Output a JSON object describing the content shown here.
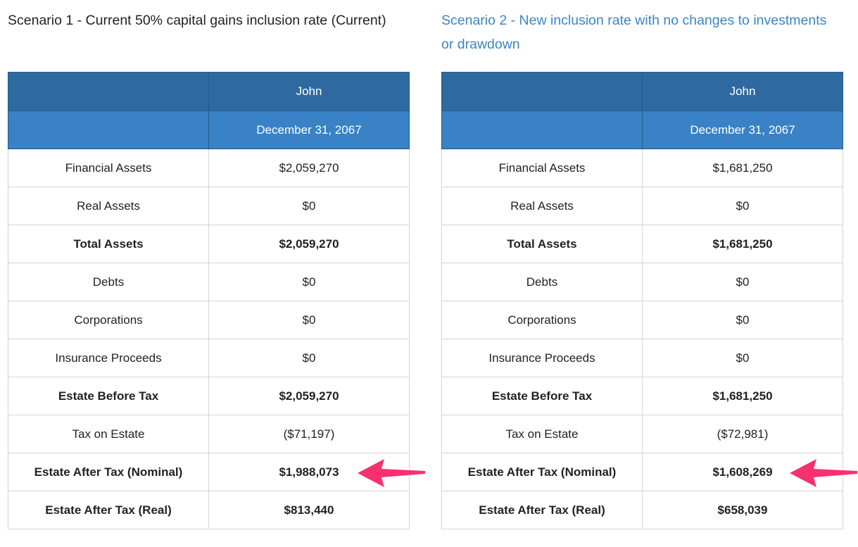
{
  "scenarios": [
    {
      "title": "Scenario 1 - Current 50% capital gains inclusion rate (Current)",
      "person": "John",
      "date": "December 31, 2067",
      "rows": [
        {
          "label": "Financial Assets",
          "value": "$2,059,270",
          "bold": false
        },
        {
          "label": "Real Assets",
          "value": "$0",
          "bold": false
        },
        {
          "label": "Total Assets",
          "value": "$2,059,270",
          "bold": true
        },
        {
          "label": "Debts",
          "value": "$0",
          "bold": false
        },
        {
          "label": "Corporations",
          "value": "$0",
          "bold": false
        },
        {
          "label": "Insurance Proceeds",
          "value": "$0",
          "bold": false
        },
        {
          "label": "Estate Before Tax",
          "value": "$2,059,270",
          "bold": true
        },
        {
          "label": "Tax on Estate",
          "value": "($71,197)",
          "bold": false
        },
        {
          "label": "Estate After Tax (Nominal)",
          "value": "$1,988,073",
          "bold": true
        },
        {
          "label": "Estate After Tax (Real)",
          "value": "$813,440",
          "bold": true
        }
      ]
    },
    {
      "title": "Scenario 2 - New inclusion rate with no changes to investments or drawdown",
      "person": "John",
      "date": "December 31, 2067",
      "rows": [
        {
          "label": "Financial Assets",
          "value": "$1,681,250",
          "bold": false
        },
        {
          "label": "Real Assets",
          "value": "$0",
          "bold": false
        },
        {
          "label": "Total Assets",
          "value": "$1,681,250",
          "bold": true
        },
        {
          "label": "Debts",
          "value": "$0",
          "bold": false
        },
        {
          "label": "Corporations",
          "value": "$0",
          "bold": false
        },
        {
          "label": "Insurance Proceeds",
          "value": "$0",
          "bold": false
        },
        {
          "label": "Estate Before Tax",
          "value": "$1,681,250",
          "bold": true
        },
        {
          "label": "Tax on Estate",
          "value": "($72,981)",
          "bold": false
        },
        {
          "label": "Estate After Tax (Nominal)",
          "value": "$1,608,269",
          "bold": true
        },
        {
          "label": "Estate After Tax (Real)",
          "value": "$658,039",
          "bold": true
        }
      ]
    }
  ],
  "colors": {
    "header_dark": "#2e6aa0",
    "header_light": "#3982c6",
    "link": "#3a86c8",
    "arrow": "#f7306f"
  }
}
